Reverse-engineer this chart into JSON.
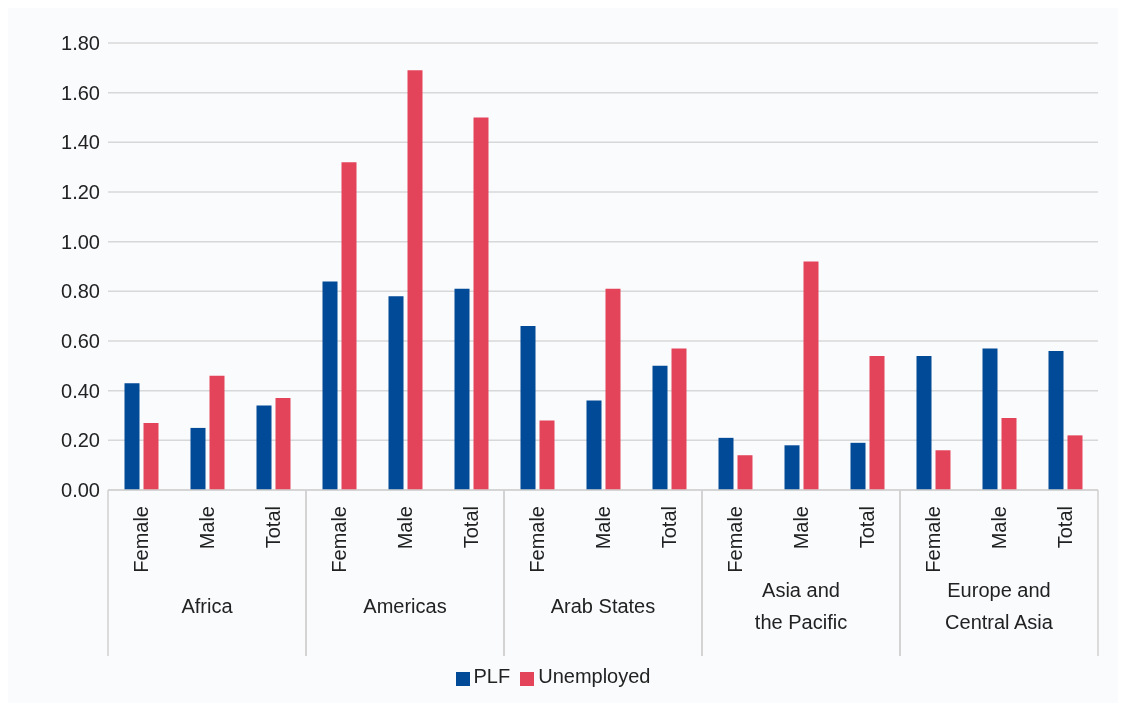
{
  "chart_data": {
    "type": "bar",
    "categories": [
      "Female",
      "Male",
      "Total",
      "Female",
      "Male",
      "Total",
      "Female",
      "Male",
      "Total",
      "Female",
      "Male",
      "Total",
      "Female",
      "Male",
      "Total"
    ],
    "series": [
      {
        "name": "PLF",
        "color": "#004a98",
        "values": [
          0.43,
          0.25,
          0.34,
          0.84,
          0.78,
          0.81,
          0.66,
          0.36,
          0.5,
          0.21,
          0.18,
          0.19,
          0.54,
          0.57,
          0.56
        ]
      },
      {
        "name": "Unemployed",
        "color": "#e4445a",
        "values": [
          0.27,
          0.46,
          0.37,
          1.32,
          1.69,
          1.5,
          0.28,
          0.81,
          0.57,
          0.14,
          0.92,
          0.54,
          0.16,
          0.29,
          0.22
        ]
      }
    ],
    "annotations": [
      "Africa",
      "Americas",
      "Arab States",
      "Asia and the Pacific",
      "Europe and Central Asia"
    ],
    "ylim": [
      0,
      1.8
    ],
    "yticks": [
      {
        "value": 0,
        "label": "0.00"
      },
      {
        "value": 0.2,
        "label": "0.20"
      },
      {
        "value": 0.4,
        "label": "0.40"
      },
      {
        "value": 0.6,
        "label": "0.60"
      },
      {
        "value": 0.8,
        "label": "0.80"
      },
      {
        "value": 1,
        "label": "1.00"
      },
      {
        "value": 1.2,
        "label": "1.20"
      },
      {
        "value": 1.4,
        "label": "1.40"
      },
      {
        "value": 1.6,
        "label": "1.60"
      },
      {
        "value": 1.8,
        "label": "1.80"
      }
    ],
    "grid": "y",
    "legend": "bottom"
  }
}
